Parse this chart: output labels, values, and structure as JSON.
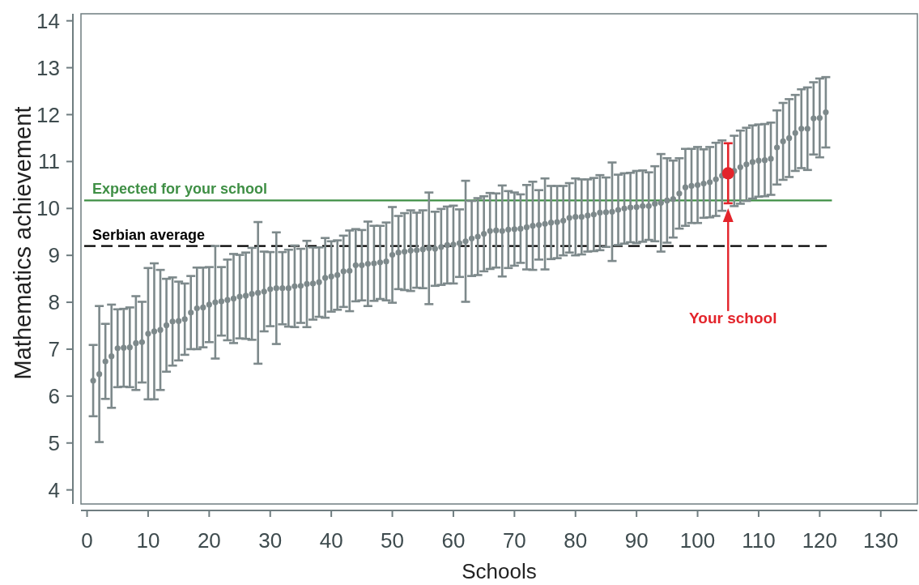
{
  "chart_data": {
    "type": "scatter",
    "xlabel": "Schools",
    "ylabel": "Mathematics achievement",
    "xlim": [
      -1,
      136
    ],
    "ylim": [
      3.7,
      14.15
    ],
    "xticks": [
      0,
      10,
      20,
      30,
      40,
      50,
      60,
      70,
      80,
      90,
      100,
      110,
      120,
      130
    ],
    "yticks": [
      4,
      5,
      6,
      7,
      8,
      9,
      10,
      11,
      12,
      13,
      14
    ],
    "marker": "circle",
    "grid": false,
    "series": [
      {
        "color": "#7d898b",
        "x": [
          1,
          2,
          3,
          4,
          5,
          6,
          7,
          8,
          9,
          10,
          11,
          12,
          13,
          14,
          15,
          16,
          17,
          18,
          19,
          20,
          21,
          22,
          23,
          24,
          25,
          26,
          27,
          28,
          29,
          30,
          31,
          32,
          33,
          34,
          35,
          36,
          37,
          38,
          39,
          40,
          41,
          42,
          43,
          44,
          45,
          46,
          47,
          48,
          49,
          50,
          51,
          52,
          53,
          54,
          55,
          56,
          57,
          58,
          59,
          60,
          61,
          62,
          63,
          64,
          65,
          66,
          67,
          68,
          69,
          70,
          71,
          72,
          73,
          74,
          75,
          76,
          77,
          78,
          79,
          80,
          81,
          82,
          83,
          84,
          85,
          86,
          87,
          88,
          89,
          90,
          91,
          92,
          93,
          94,
          95,
          96,
          97,
          98,
          99,
          100,
          101,
          102,
          103,
          104,
          105,
          106,
          107,
          108,
          109,
          110,
          111,
          112,
          113,
          114,
          115,
          116,
          117,
          118,
          119,
          120,
          121
        ],
        "values": [
          6.33,
          6.47,
          6.74,
          6.85,
          7.02,
          7.03,
          7.04,
          7.13,
          7.15,
          7.33,
          7.38,
          7.41,
          7.51,
          7.59,
          7.6,
          7.64,
          7.78,
          7.87,
          7.89,
          7.95,
          8.0,
          8.02,
          8.05,
          8.08,
          8.12,
          8.14,
          8.18,
          8.2,
          8.23,
          8.28,
          8.3,
          8.3,
          8.3,
          8.34,
          8.35,
          8.39,
          8.4,
          8.43,
          8.52,
          8.55,
          8.58,
          8.66,
          8.67,
          8.79,
          8.79,
          8.82,
          8.83,
          8.85,
          8.87,
          9.01,
          9.06,
          9.08,
          9.1,
          9.11,
          9.13,
          9.15,
          9.14,
          9.18,
          9.22,
          9.23,
          9.26,
          9.3,
          9.36,
          9.4,
          9.46,
          9.52,
          9.53,
          9.52,
          9.55,
          9.56,
          9.57,
          9.6,
          9.63,
          9.65,
          9.67,
          9.7,
          9.71,
          9.74,
          9.8,
          9.82,
          9.82,
          9.85,
          9.87,
          9.91,
          9.92,
          9.93,
          9.97,
          10.0,
          10.02,
          10.03,
          10.05,
          10.05,
          10.1,
          10.12,
          10.17,
          10.2,
          10.32,
          10.45,
          10.48,
          10.5,
          10.53,
          10.56,
          10.62,
          10.7,
          null,
          10.8,
          10.88,
          10.94,
          10.99,
          11.02,
          11.03,
          11.06,
          11.3,
          11.43,
          11.5,
          11.61,
          11.7,
          11.7,
          11.92,
          11.93,
          12.05
        ],
        "errors": [
          0.76,
          1.45,
          0.8,
          1.1,
          0.83,
          0.83,
          0.85,
          1.0,
          0.86,
          1.4,
          1.45,
          1.28,
          0.99,
          0.94,
          0.84,
          0.76,
          0.78,
          0.87,
          0.85,
          0.8,
          1.2,
          0.73,
          0.86,
          0.95,
          0.89,
          0.92,
          0.98,
          1.51,
          0.85,
          0.79,
          1.19,
          0.77,
          0.82,
          0.87,
          0.79,
          0.92,
          0.77,
          0.74,
          0.85,
          0.75,
          0.74,
          0.76,
          0.86,
          0.77,
          0.75,
          0.9,
          0.8,
          0.78,
          0.83,
          1.02,
          0.78,
          0.82,
          0.86,
          0.8,
          0.83,
          1.19,
          0.79,
          0.81,
          0.82,
          0.83,
          0.72,
          1.29,
          0.8,
          0.82,
          0.8,
          0.81,
          0.79,
          0.97,
          0.82,
          0.78,
          0.73,
          0.9,
          0.94,
          0.74,
          0.97,
          0.78,
          0.77,
          0.74,
          0.74,
          0.82,
          0.8,
          0.77,
          0.78,
          0.8,
          0.74,
          1.05,
          0.75,
          0.75,
          0.74,
          0.77,
          0.76,
          0.72,
          0.8,
          1.04,
          0.9,
          0.82,
          0.75,
          0.82,
          0.79,
          0.81,
          0.73,
          0.75,
          0.78,
          0.75,
          null,
          0.75,
          0.78,
          0.78,
          0.78,
          0.77,
          0.77,
          0.77,
          0.79,
          0.82,
          0.83,
          0.81,
          0.84,
          0.88,
          0.77,
          0.84,
          0.75
        ]
      },
      {
        "color": "#e3242b",
        "x": [
          105
        ],
        "values": [
          10.75
        ],
        "errors": [
          0.64
        ]
      }
    ],
    "ref_lines": [
      {
        "axis": "y",
        "value": 10.17,
        "label": "Expected for your school",
        "color": "#3f8f45",
        "line_style": "solid"
      },
      {
        "axis": "y",
        "value": 9.2,
        "label": "Serbian average",
        "color": "#000000",
        "line_style": "dashed"
      }
    ],
    "annotations": [
      "Your school"
    ]
  }
}
